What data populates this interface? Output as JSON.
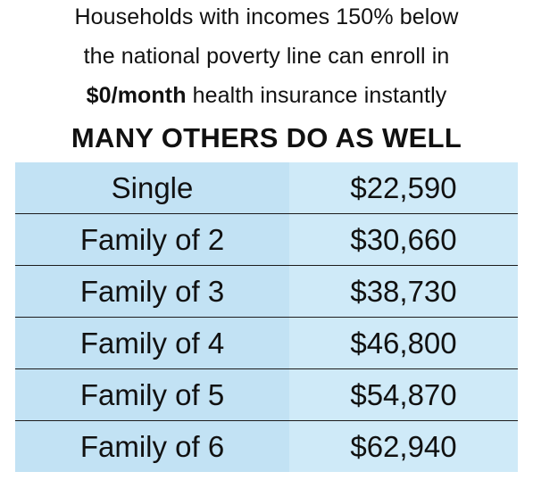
{
  "intro": {
    "line1": "Households with incomes 150% below",
    "line2": "the national poverty line can enroll in",
    "line3_bold": "$0/month",
    "line3_rest": " health insurance instantly"
  },
  "headline": "MANY OTHERS DO AS WELL",
  "table": {
    "rows": [
      {
        "household": "Single",
        "income": "$22,590"
      },
      {
        "household": "Family of 2",
        "income": "$30,660"
      },
      {
        "household": "Family of 3",
        "income": "$38,730"
      },
      {
        "household": "Family of 4",
        "income": "$46,800"
      },
      {
        "household": "Family of 5",
        "income": "$54,870"
      },
      {
        "household": "Family of 6",
        "income": "$62,940"
      }
    ]
  },
  "colors": {
    "cell_left": "#c2e2f4",
    "cell_right": "#cfeaf8",
    "row_divider": "#1c1c1c",
    "text": "#111111"
  }
}
